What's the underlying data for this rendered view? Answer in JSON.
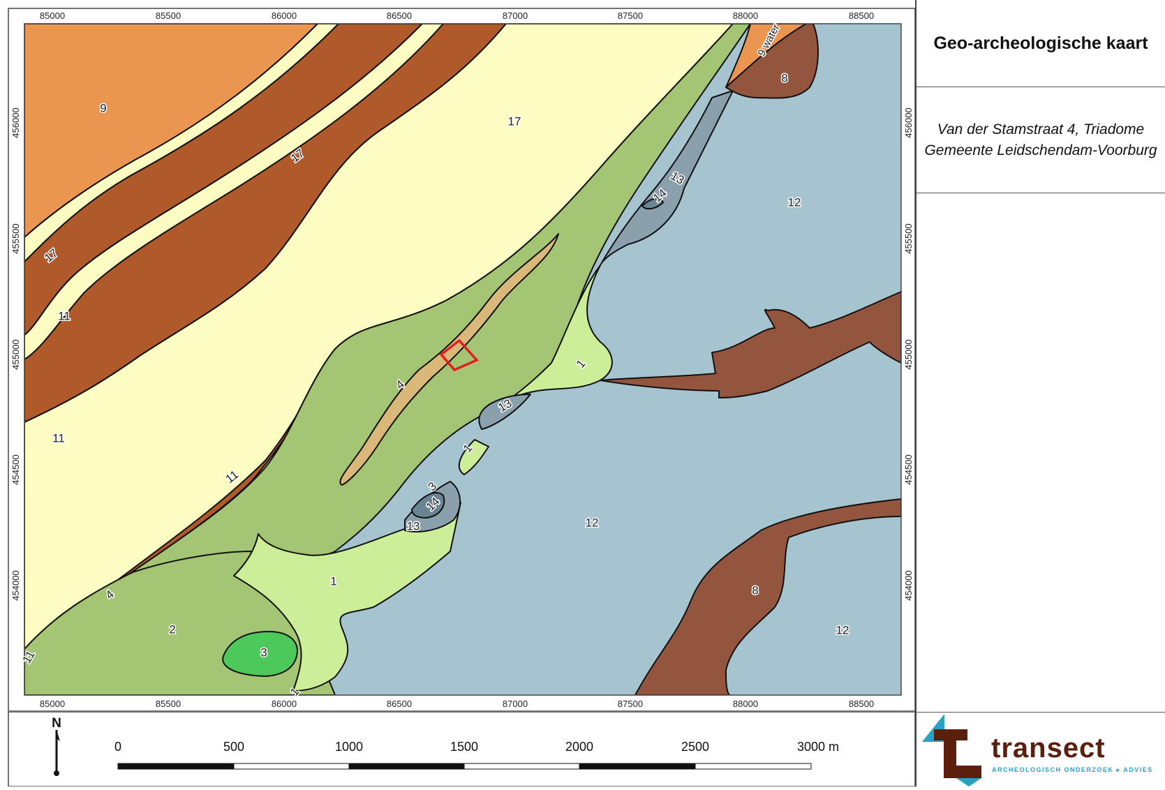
{
  "title": "Geo-archeologische kaart",
  "subtitle_line1": "Van der Stamstraat 4, Triadome",
  "subtitle_line2": "Gemeente Leidschendam-Voorburg",
  "x_ticks": [
    "85000",
    "85500",
    "86000",
    "86500",
    "87000",
    "87500",
    "88000",
    "88500"
  ],
  "y_ticks": [
    "456000",
    "455500",
    "455000",
    "454500",
    "454000"
  ],
  "north_label": "N",
  "scale_labels": [
    "0",
    "500",
    "1000",
    "1500",
    "2000",
    "2500",
    "3000 m"
  ],
  "logo": {
    "word": "transect",
    "tagline": "ARCHEOLOGISCH ONDERZOEK ▸ ADVIES"
  },
  "unit_labels": {
    "u9_nw": "9",
    "u17_a": "17",
    "u17_b": "17",
    "u17_c": "17",
    "u11_a": "11",
    "u11_b": "11",
    "u11_c": "11",
    "u11_d": "11",
    "u4_a": "4",
    "u4_b": "4",
    "u2": "2",
    "u3_a": "3",
    "u3_b": "3",
    "u1_a": "1",
    "u1_b": "1",
    "u1_c": "1",
    "u1_d": "1",
    "u13_a": "13",
    "u13_b": "13",
    "u13_c": "13",
    "u14_a": "14",
    "u14_b": "14",
    "u12_a": "12",
    "u12_b": "12",
    "u12_c": "12",
    "u8_a": "8",
    "u8_b": "8",
    "water": "9 water"
  },
  "colors": {
    "unit_9": "#ea9651",
    "unit_17": "#fdfdc3",
    "unit_11": "#b05a2c",
    "unit_2": "#a3c574",
    "unit_4": "#d9b87a",
    "unit_1": "#cdee99",
    "unit_3": "#4cc95a",
    "unit_12": "#a6c3d0",
    "unit_13": "#8aa1ad",
    "unit_14": "#6a8493",
    "unit_8": "#93553e",
    "plan_area": "#e11f1f",
    "logo_brown": "#5c1f0e",
    "logo_blue": "#2aa1c4"
  }
}
